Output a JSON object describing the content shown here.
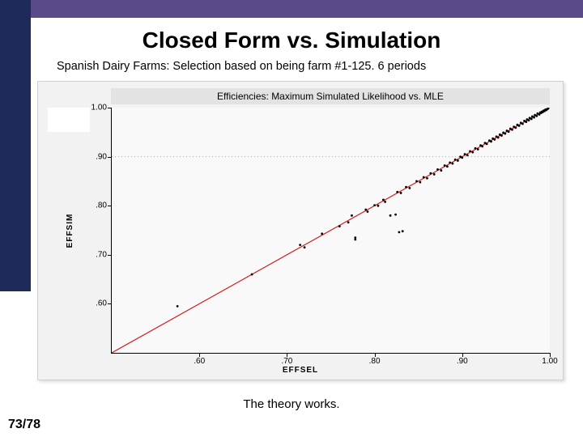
{
  "slide": {
    "title": "Closed Form vs. Simulation",
    "subtitle": "Spanish Dairy Farms: Selection based on being farm #1-125. 6 periods",
    "caption": "The theory works.",
    "page": "73/78"
  },
  "colors": {
    "topbar": "#5a4a8a",
    "leftbar": "#1e2a5a",
    "chart_bg": "#f2f2f2",
    "plot_bg": "#f9f9f9",
    "title_band_bg": "#e3e3e3",
    "grid": "#aaaaaa",
    "line": "#d02020",
    "points": "#000000"
  },
  "chart": {
    "title": "Efficiencies: Maximum Simulated Likelihood vs. MLE",
    "xlabel": "EFFSEL",
    "ylabel": "EFFSIM",
    "type": "scatter",
    "xlim": [
      0.5,
      1.0
    ],
    "ylim": [
      0.5,
      1.0
    ],
    "xticks": [
      0.6,
      0.7,
      0.8,
      0.9,
      1.0
    ],
    "xtick_labels": [
      ".60",
      ".70",
      ".80",
      ".90",
      "1.00"
    ],
    "yticks": [
      0.6,
      0.7,
      0.8,
      0.9,
      1.0
    ],
    "ytick_labels": [
      ".60",
      ".70",
      ".80",
      ".90",
      "1.00"
    ],
    "fit_line": {
      "x0": 0.5,
      "y0": 0.5,
      "x1": 1.0,
      "y1": 1.0,
      "color": "#d02020",
      "width": 1.2
    },
    "ygrid_at": [
      0.9
    ],
    "grid_dash": "1,3",
    "marker_size": 1.4,
    "points": [
      [
        0.575,
        0.595
      ],
      [
        0.66,
        0.66
      ],
      [
        0.715,
        0.72
      ],
      [
        0.72,
        0.715
      ],
      [
        0.74,
        0.743
      ],
      [
        0.76,
        0.758
      ],
      [
        0.77,
        0.766
      ],
      [
        0.774,
        0.78
      ],
      [
        0.778,
        0.735
      ],
      [
        0.778,
        0.731
      ],
      [
        0.79,
        0.792
      ],
      [
        0.792,
        0.788
      ],
      [
        0.8,
        0.801
      ],
      [
        0.804,
        0.8
      ],
      [
        0.81,
        0.812
      ],
      [
        0.812,
        0.808
      ],
      [
        0.818,
        0.78
      ],
      [
        0.824,
        0.782
      ],
      [
        0.828,
        0.746
      ],
      [
        0.832,
        0.748
      ],
      [
        0.826,
        0.828
      ],
      [
        0.83,
        0.826
      ],
      [
        0.836,
        0.838
      ],
      [
        0.84,
        0.836
      ],
      [
        0.848,
        0.85
      ],
      [
        0.852,
        0.848
      ],
      [
        0.856,
        0.858
      ],
      [
        0.86,
        0.856
      ],
      [
        0.864,
        0.866
      ],
      [
        0.868,
        0.864
      ],
      [
        0.872,
        0.874
      ],
      [
        0.876,
        0.872
      ],
      [
        0.88,
        0.882
      ],
      [
        0.883,
        0.88
      ],
      [
        0.886,
        0.888
      ],
      [
        0.889,
        0.886
      ],
      [
        0.892,
        0.894
      ],
      [
        0.895,
        0.892
      ],
      [
        0.898,
        0.9
      ],
      [
        0.9,
        0.898
      ],
      [
        0.903,
        0.905
      ],
      [
        0.906,
        0.903
      ],
      [
        0.909,
        0.911
      ],
      [
        0.912,
        0.909
      ],
      [
        0.915,
        0.917
      ],
      [
        0.918,
        0.915
      ],
      [
        0.921,
        0.923
      ],
      [
        0.923,
        0.921
      ],
      [
        0.926,
        0.928
      ],
      [
        0.928,
        0.926
      ],
      [
        0.931,
        0.933
      ],
      [
        0.933,
        0.931
      ],
      [
        0.935,
        0.937
      ],
      [
        0.937,
        0.935
      ],
      [
        0.939,
        0.941
      ],
      [
        0.941,
        0.939
      ],
      [
        0.943,
        0.945
      ],
      [
        0.945,
        0.943
      ],
      [
        0.947,
        0.949
      ],
      [
        0.949,
        0.947
      ],
      [
        0.951,
        0.953
      ],
      [
        0.953,
        0.951
      ],
      [
        0.955,
        0.957
      ],
      [
        0.957,
        0.955
      ],
      [
        0.959,
        0.961
      ],
      [
        0.961,
        0.959
      ],
      [
        0.963,
        0.965
      ],
      [
        0.965,
        0.963
      ],
      [
        0.967,
        0.969
      ],
      [
        0.969,
        0.967
      ],
      [
        0.971,
        0.973
      ],
      [
        0.973,
        0.971
      ],
      [
        0.974,
        0.976
      ],
      [
        0.976,
        0.974
      ],
      [
        0.977,
        0.979
      ],
      [
        0.979,
        0.977
      ],
      [
        0.98,
        0.982
      ],
      [
        0.982,
        0.98
      ],
      [
        0.983,
        0.985
      ],
      [
        0.985,
        0.983
      ],
      [
        0.986,
        0.988
      ],
      [
        0.988,
        0.986
      ],
      [
        0.989,
        0.99
      ],
      [
        0.99,
        0.989
      ],
      [
        0.991,
        0.992
      ],
      [
        0.992,
        0.991
      ],
      [
        0.993,
        0.994
      ],
      [
        0.994,
        0.993
      ],
      [
        0.995,
        0.996
      ],
      [
        0.996,
        0.995
      ],
      [
        0.997,
        0.997
      ],
      [
        0.998,
        0.998
      ]
    ]
  }
}
